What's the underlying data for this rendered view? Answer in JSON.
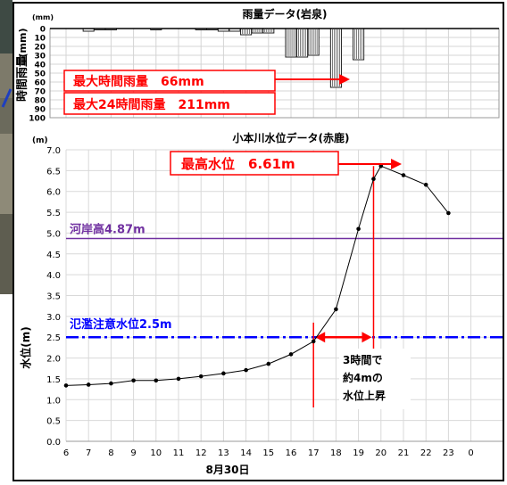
{
  "rain_chart": {
    "title": "雨量データ(岩泉)",
    "unit": "(mm)",
    "ylabel": "時間雨量",
    "ylabel_unit": "(mm)",
    "annotation_max_hourly": "最大時間雨量　66mm",
    "annotation_max_24h": "最大24時間雨量　211mm"
  },
  "level_chart": {
    "title": "小本川水位データ(赤鹿)",
    "unit": "(m)",
    "ylabel": "水位(m)",
    "xlabel": "8月30日",
    "bank_label": "河岸高4.87m",
    "flood_label": "氾濫注意水位2.5m",
    "peak_label": "最高水位　6.61m",
    "rise_note_line1": "3時間で",
    "rise_note_line2": "約4mの",
    "rise_note_line3": "水位上昇"
  },
  "chart_data": [
    {
      "type": "bar",
      "title": "雨量データ(岩泉)",
      "ylabel": "時間雨量",
      "y_unit": "(mm)",
      "y_inverted": true,
      "ylim": [
        0,
        100
      ],
      "yticks": [
        0,
        10,
        20,
        30,
        40,
        50,
        60,
        70,
        80,
        90,
        100
      ],
      "x": [
        6,
        6.5,
        7,
        7.5,
        8,
        8.5,
        9,
        9.5,
        10,
        10.5,
        11,
        11.5,
        12,
        12.5,
        13,
        13.5,
        14,
        14.5,
        15,
        15.5,
        16,
        16.5,
        17,
        17.5,
        18,
        18.5,
        19,
        19.5,
        20
      ],
      "values": [
        0,
        0,
        3,
        1,
        1,
        0,
        0,
        0,
        1,
        0,
        0,
        0,
        1,
        1,
        3,
        3,
        7,
        5,
        5,
        0,
        32,
        32,
        30,
        0,
        66,
        0,
        35,
        0,
        0
      ],
      "grid": true
    },
    {
      "type": "line",
      "title": "小本川水位データ(赤鹿)",
      "xlabel": "8月30日",
      "ylabel": "水位(m)",
      "y_unit": "(m)",
      "xlim": [
        6,
        24
      ],
      "xticks": [
        6,
        7,
        8,
        9,
        10,
        11,
        12,
        13,
        14,
        15,
        16,
        17,
        18,
        19,
        20,
        21,
        22,
        23,
        0
      ],
      "ylim": [
        0,
        7
      ],
      "yticks": [
        "0.0",
        "0.5",
        "1.0",
        "1.5",
        "2.0",
        "2.5",
        "3.0",
        "3.5",
        "4.0",
        "4.5",
        "5.0",
        "5.5",
        "6.0",
        "6.5",
        "7.0"
      ],
      "grid": true,
      "x": [
        6,
        7,
        8,
        9,
        10,
        11,
        12,
        13,
        14,
        15,
        16,
        17,
        18,
        19,
        19.67,
        20,
        21,
        22,
        23
      ],
      "y": [
        1.34,
        1.36,
        1.39,
        1.46,
        1.46,
        1.5,
        1.56,
        1.63,
        1.71,
        1.86,
        2.09,
        2.4,
        3.17,
        5.1,
        6.3,
        6.61,
        6.39,
        6.16,
        5.48
      ],
      "reference_lines": [
        {
          "label": "河岸高4.87m",
          "value": 4.87,
          "color": "#7030a0",
          "style": "solid"
        },
        {
          "label": "氾濫注意水位2.5m",
          "value": 2.5,
          "color": "#0000ff",
          "style": "dash-dot"
        }
      ],
      "vertical_markers": [
        17,
        19.67
      ],
      "line_color": "#000000",
      "annotation_color": "#ff0000"
    }
  ]
}
